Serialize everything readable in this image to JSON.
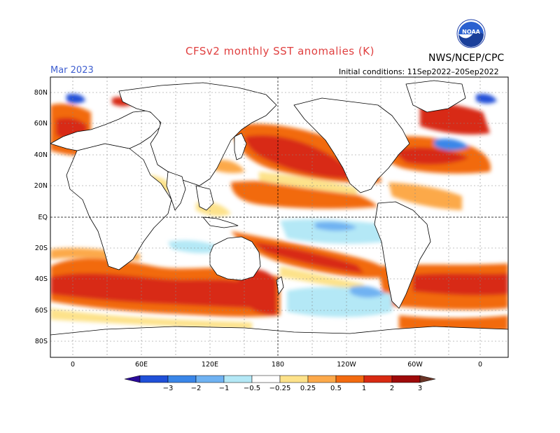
{
  "title": "CFSv2 monthly SST anomalies (K)",
  "agency": "NWS/NCEP/CPC",
  "valid_month": "Mar 2023",
  "initial_conditions": "Initial conditions: 11Sep2022–20Sep2022",
  "logo_text": "NOAA",
  "lat_labels": [
    "80N",
    "60N",
    "40N",
    "20N",
    "EQ",
    "20S",
    "40S",
    "60S",
    "80S"
  ],
  "lon_labels": [
    "0",
    "60E",
    "120E",
    "180",
    "120W",
    "60W",
    "0"
  ],
  "colorbar": {
    "labels": [
      "−3",
      "−2",
      "−1",
      "−0.5",
      "−0.25",
      "0.25",
      "0.5",
      "1",
      "2",
      "3"
    ],
    "colors": [
      "#2a0a9a",
      "#2050d8",
      "#3a86e8",
      "#6fb2f2",
      "#b4e8f6",
      "#ffffff",
      "#fde28a",
      "#fca94a",
      "#f26a10",
      "#d82a12",
      "#9e0a0a",
      "#6a3426"
    ]
  },
  "colors": {
    "land": "#ffffff",
    "ocean_neutral": "#ffffff",
    "grid": "#888888"
  }
}
